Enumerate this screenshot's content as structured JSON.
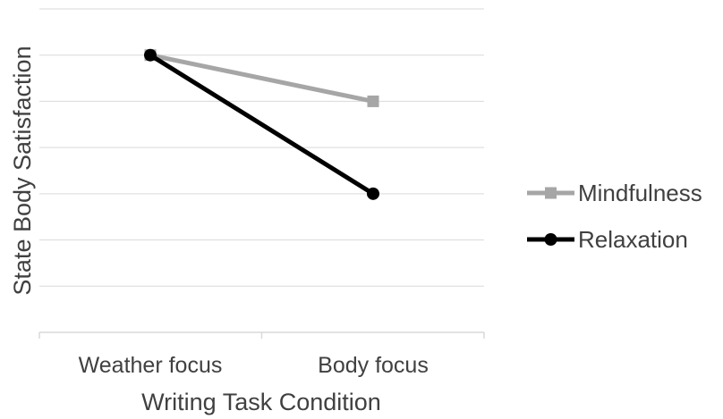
{
  "chart_data": {
    "type": "line",
    "title": "",
    "xlabel": "Writing Task Condition",
    "ylabel": "State Body Satisfaction",
    "categories": [
      "Weather focus",
      "Body focus"
    ],
    "ylim": [
      0,
      7
    ],
    "y_ticks_shown": false,
    "grid": true,
    "legend_position": "right",
    "series": [
      {
        "name": "Mindfulness",
        "values": [
          6,
          5
        ],
        "color": "#a6a6a6",
        "marker": "square"
      },
      {
        "name": "Relaxation",
        "values": [
          6,
          3
        ],
        "color": "#000000",
        "marker": "circle"
      }
    ]
  }
}
